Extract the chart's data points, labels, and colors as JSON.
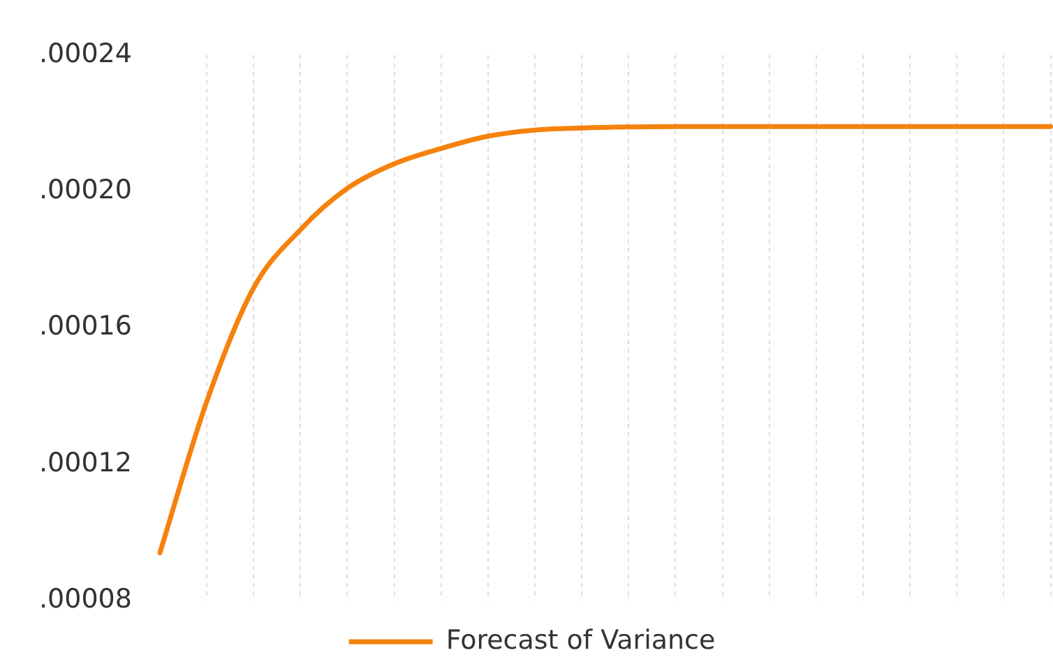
{
  "chart_data": {
    "type": "line",
    "categories": [
      null,
      null,
      null,
      null,
      null,
      null,
      null,
      null,
      null,
      null,
      null,
      null,
      null,
      null,
      null,
      null,
      null,
      null,
      null,
      null
    ],
    "series": [
      {
        "name": "Forecast of Variance",
        "color": "#f5820d",
        "values": [
          9.4e-05,
          0.0001384,
          0.0001717,
          0.0001888,
          0.0002009,
          0.0002081,
          0.0002126,
          0.0002162,
          0.000218,
          0.0002186,
          0.0002189,
          0.000219,
          0.000219,
          0.000219,
          0.000219,
          0.000219,
          0.000219,
          0.000219,
          0.000219,
          0.000219
        ]
      }
    ],
    "ylim": [
      8e-05,
      0.00024
    ],
    "yticks": [
      {
        "value": 8e-05,
        "label": ".00008"
      },
      {
        "value": 0.00012,
        "label": ".00012"
      },
      {
        "value": 0.00016,
        "label": ".00016"
      },
      {
        "value": 0.0002,
        "label": ".00020"
      },
      {
        "value": 0.00024,
        "label": ".00024"
      }
    ],
    "grid": "x",
    "legend": "bottom",
    "marker": "none",
    "line_style": "solid"
  }
}
